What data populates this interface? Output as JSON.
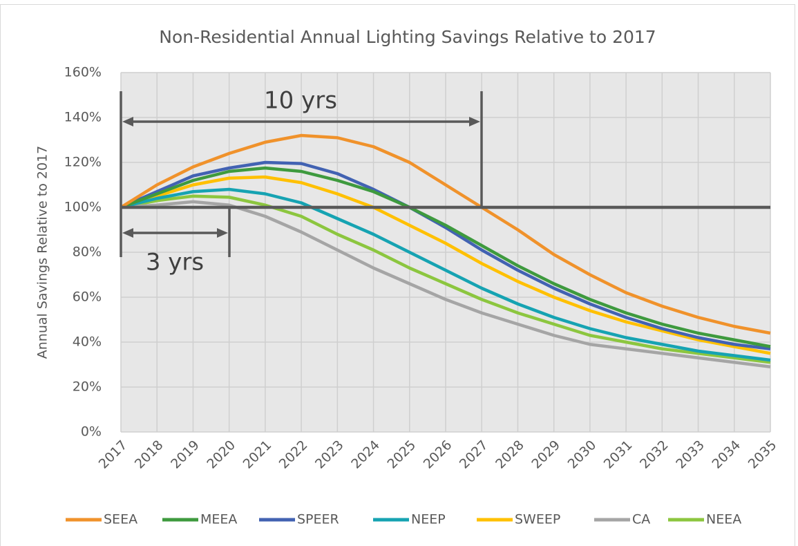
{
  "chart_data": {
    "type": "line",
    "title": "Non-Residential Annual Lighting Savings Relative to 2017",
    "y_label": "Annual Savings Relative to 2017",
    "annotations": [
      "10 yrs",
      "3 yrs"
    ],
    "x": [
      2017,
      2018,
      2019,
      2020,
      2021,
      2022,
      2023,
      2024,
      2025,
      2026,
      2027,
      2028,
      2029,
      2030,
      2031,
      2032,
      2033,
      2034,
      2035
    ],
    "xlim": [
      2017,
      2035
    ],
    "xticks": [
      2017,
      2018,
      2019,
      2020,
      2021,
      2022,
      2023,
      2024,
      2025,
      2026,
      2027,
      2028,
      2029,
      2030,
      2031,
      2032,
      2033,
      2034,
      2035
    ],
    "ylim": [
      0,
      160
    ],
    "yticks": [
      {
        "value": 0,
        "label": "0%"
      },
      {
        "value": 20,
        "label": "20%"
      },
      {
        "value": 40,
        "label": "40%"
      },
      {
        "value": 60,
        "label": "60%"
      },
      {
        "value": 80,
        "label": "80%"
      },
      {
        "value": 100,
        "label": "100%"
      },
      {
        "value": 120,
        "label": "120%"
      },
      {
        "value": 140,
        "label": "140%"
      },
      {
        "value": 160,
        "label": "160%"
      }
    ],
    "grid": true,
    "legend": "bottom",
    "series": [
      {
        "name": "SEEA",
        "color": "#f0922b",
        "values": [
          100,
          110,
          118,
          124,
          129,
          132,
          131,
          127,
          120,
          110,
          100,
          90,
          79,
          70,
          62,
          56,
          51,
          47,
          44
        ]
      },
      {
        "name": "MEEA",
        "color": "#3e9a3e",
        "values": [
          100,
          106,
          112,
          116,
          117.5,
          116,
          112,
          107,
          100,
          92,
          83,
          74,
          66,
          59,
          53,
          48,
          44,
          41,
          38
        ]
      },
      {
        "name": "SPEER",
        "color": "#4262b2",
        "values": [
          100,
          107,
          114,
          117.5,
          120,
          119.5,
          115,
          108,
          100,
          91,
          81,
          72,
          64,
          57,
          51,
          46,
          42,
          39,
          37
        ]
      },
      {
        "name": "NEEP",
        "color": "#16a3b2",
        "values": [
          100,
          104,
          107,
          108,
          106,
          102,
          95,
          88,
          80,
          72,
          64,
          57,
          51,
          46,
          42,
          39,
          36,
          34,
          32
        ]
      },
      {
        "name": "SWEEP",
        "color": "#ffc000",
        "values": [
          100,
          105,
          110,
          113,
          113.5,
          111,
          106,
          100,
          92,
          84,
          75,
          67,
          60,
          54,
          49,
          45,
          41,
          38,
          35
        ]
      },
      {
        "name": "CA",
        "color": "#a5a5a5",
        "values": [
          100,
          101,
          102.5,
          101,
          96,
          89,
          81,
          73,
          66,
          59,
          53,
          48,
          43,
          39,
          37,
          35,
          33,
          31,
          29
        ]
      },
      {
        "name": "NEEA",
        "color": "#8cc63f",
        "values": [
          100,
          103,
          105,
          104.5,
          101,
          96,
          88,
          81,
          73,
          66,
          59,
          53,
          48,
          43,
          40,
          37,
          35,
          33,
          31
        ]
      }
    ]
  }
}
